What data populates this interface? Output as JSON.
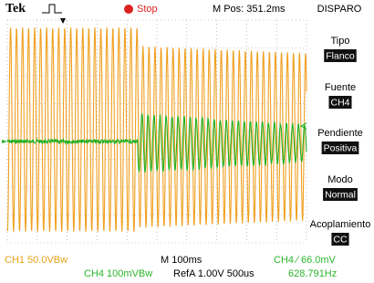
{
  "header": {
    "brand": "Tek",
    "status": "Stop",
    "position": "M Pos: 351.2ms",
    "menu_title": "DISPARO"
  },
  "menu": [
    {
      "label": "Tipo",
      "value": "Flanco"
    },
    {
      "label": "Fuente",
      "value": "CH4"
    },
    {
      "label": "Pendiente",
      "value": "Positiva"
    },
    {
      "label": "Modo",
      "value": "Normal"
    },
    {
      "label": "Acoplamiento",
      "value": "CC"
    }
  ],
  "footer": {
    "ch1": "CH1  50.0VBw",
    "timebase": "M 100ms",
    "trigger": "CH4 ∕ 66.0mV",
    "ch4": "CH4  100mVBw",
    "ref": "RefA 1.00V 500us",
    "frequency": "628.791Hz"
  }
}
